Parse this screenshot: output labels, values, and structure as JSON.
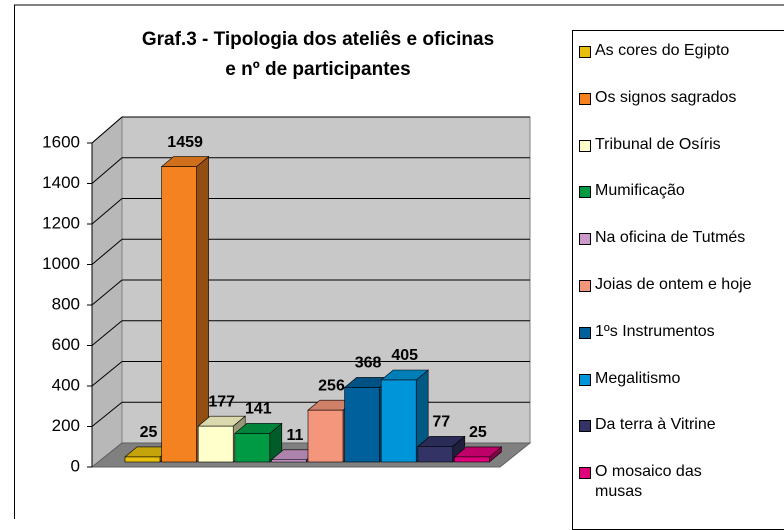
{
  "chart_data": {
    "type": "bar",
    "title": [
      "Graf.3 - Tipologia dos ateliês e oficinas",
      "e nº de participantes"
    ],
    "categories": [
      "As cores do Egipto",
      "Os signos sagrados",
      "Tribunal de Osíris",
      "Mumificação",
      "Na oficina de Tutmés",
      "Joias de ontem e hoje",
      "1ºs Instrumentos",
      "Megalitismo",
      "Da terra à Vitrine",
      "O mosaico das musas"
    ],
    "values": [
      25,
      1459,
      177,
      141,
      11,
      256,
      368,
      405,
      77,
      25
    ],
    "colors": [
      "#e8c00c",
      "#f58220",
      "#ffffcc",
      "#009a44",
      "#cc99cc",
      "#f4967c",
      "#00609c",
      "#0094d8",
      "#333366",
      "#e0007a"
    ],
    "ylim": [
      0,
      1600
    ],
    "yticks": [
      0,
      200,
      400,
      600,
      800,
      1000,
      1200,
      1400,
      1600
    ],
    "grid": true,
    "legend": "right"
  }
}
